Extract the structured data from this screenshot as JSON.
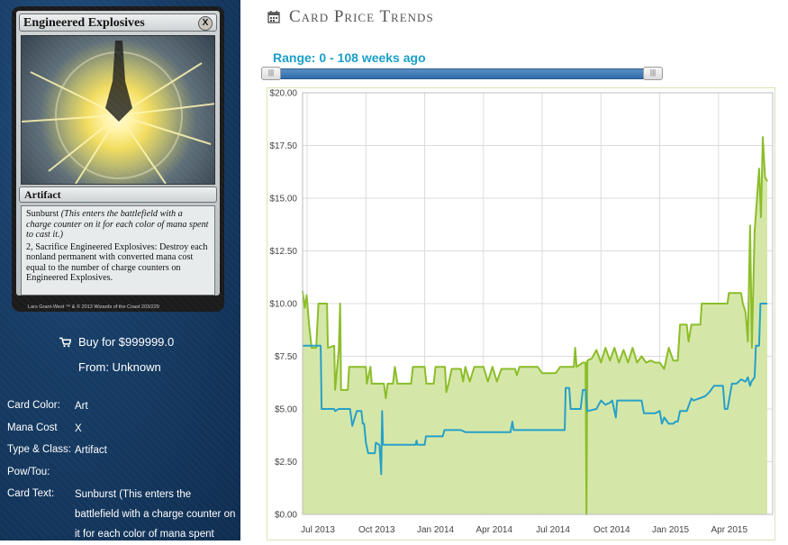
{
  "card": {
    "name": "Engineered Explosives",
    "mana_symbol": "X",
    "type_line": "Artifact",
    "rules_1_name": "Sunburst",
    "rules_1_italic": "(This enters the battlefield with a charge counter on it for each color of mana spent to cast it.)",
    "rules_2": "2, Sacrifice Engineered Explosives: Destroy each nonland permanent with converted mana cost equal to the number of charge counters on Engineered Explosives.",
    "artist": "Lars Grant-West",
    "copyright": "™ & © 2013 Wizards of the Coast 203/229"
  },
  "purchase": {
    "cart_icon": "shopping-cart-icon",
    "buy_label": "Buy for $999999.0",
    "from_label": "From: Unknown"
  },
  "properties": [
    {
      "key": "Card Color:",
      "value": "Art"
    },
    {
      "key": "Mana Cost",
      "value": "X"
    },
    {
      "key": "Type & Class:",
      "value": "Artifact"
    },
    {
      "key": "Pow/Tou:",
      "value": ""
    },
    {
      "key": "Card Text:",
      "value": "Sunburst (This enters the battlefield with a charge counter on it for each color of mana spent"
    }
  ],
  "header": {
    "icon": "calendar-icon",
    "title": "Card Price Trends"
  },
  "range": {
    "label": "Range: 0 - 108 weeks ago",
    "start_fraction": 0,
    "end_fraction": 1
  },
  "colors": {
    "green": "#8cbd2a",
    "green_fill": "#d3e6a3",
    "blue": "#27a0c9",
    "accent": "#1a9fc8",
    "sidebar": "#173d66"
  },
  "chart_data": {
    "type": "area",
    "title": "",
    "xlabel": "",
    "ylabel": "",
    "ylim": [
      0,
      20
    ],
    "y_ticks": [
      "$0.00",
      "$2.50",
      "$5.00",
      "$7.50",
      "$10.00",
      "$12.50",
      "$15.00",
      "$17.50",
      "$20.00"
    ],
    "x_ticks": [
      "Jul 2013",
      "Oct 2013",
      "Jan 2014",
      "Apr 2014",
      "Jul 2014",
      "Oct 2014",
      "Jan 2015",
      "Apr 2015"
    ],
    "x_tick_weeks": [
      1,
      14,
      27,
      40,
      53,
      66,
      79,
      92
    ],
    "grid": true,
    "series": [
      {
        "color": "#8cbd2a",
        "filled": true,
        "points": [
          [
            0,
            10.6
          ],
          [
            0.5,
            9.8
          ],
          [
            0.9,
            10.4
          ],
          [
            1.4,
            9.1
          ],
          [
            2,
            7.9
          ],
          [
            3,
            7.9
          ],
          [
            3.5,
            10
          ],
          [
            5.4,
            10
          ],
          [
            5.6,
            7.9
          ],
          [
            7,
            8
          ],
          [
            7.2,
            5.9
          ],
          [
            8,
            7.8
          ],
          [
            8.3,
            10
          ],
          [
            8.5,
            5.9
          ],
          [
            10,
            5.9
          ],
          [
            10.3,
            7
          ],
          [
            14,
            7
          ],
          [
            14.2,
            6.2
          ],
          [
            15,
            7
          ],
          [
            15.3,
            6.2
          ],
          [
            18,
            6.2
          ],
          [
            18.4,
            5.5
          ],
          [
            18.8,
            6.2
          ],
          [
            20,
            6.2
          ],
          [
            20.4,
            7
          ],
          [
            21,
            6.2
          ],
          [
            24,
            6.2
          ],
          [
            24.4,
            7
          ],
          [
            27,
            7
          ],
          [
            27.4,
            6.2
          ],
          [
            29,
            6.2
          ],
          [
            29.4,
            7
          ],
          [
            31.5,
            7
          ],
          [
            31.8,
            5.8
          ],
          [
            32.3,
            6.2
          ],
          [
            33,
            6.9
          ],
          [
            35,
            6.9
          ],
          [
            35.5,
            6.3
          ],
          [
            36,
            7
          ],
          [
            37,
            6.3
          ],
          [
            38,
            7
          ],
          [
            40,
            7
          ],
          [
            41,
            6.3
          ],
          [
            42,
            7
          ],
          [
            43,
            6.3
          ],
          [
            44,
            6.9
          ],
          [
            47,
            6.9
          ],
          [
            47.4,
            6.6
          ],
          [
            48,
            7
          ],
          [
            52,
            7
          ],
          [
            53,
            6.7
          ],
          [
            56,
            6.7
          ],
          [
            57,
            7
          ],
          [
            60,
            7
          ],
          [
            60.3,
            7.9
          ],
          [
            60.6,
            7
          ],
          [
            62,
            7.2
          ],
          [
            62.6,
            7.2
          ],
          [
            62.8,
            0
          ],
          [
            63,
            7.3
          ],
          [
            64,
            7.4
          ],
          [
            65,
            7.8
          ],
          [
            66,
            7.2
          ],
          [
            67,
            7.9
          ],
          [
            68,
            7.3
          ],
          [
            69,
            7.9
          ],
          [
            70,
            7.2
          ],
          [
            71,
            7.8
          ],
          [
            72,
            7.2
          ],
          [
            73,
            7.9
          ],
          [
            74,
            7.2
          ],
          [
            75,
            7.5
          ],
          [
            76,
            7.2
          ],
          [
            77,
            7.3
          ],
          [
            78,
            7.2
          ],
          [
            79,
            7.2
          ],
          [
            80,
            6.9
          ],
          [
            81,
            7.9
          ],
          [
            82,
            7.3
          ],
          [
            83,
            7.3
          ],
          [
            83.5,
            9
          ],
          [
            85,
            9
          ],
          [
            85.4,
            8.2
          ],
          [
            86,
            9
          ],
          [
            88,
            9
          ],
          [
            88.3,
            10
          ],
          [
            94,
            10
          ],
          [
            94.3,
            10.5
          ],
          [
            97,
            10.5
          ],
          [
            97.4,
            10
          ],
          [
            98,
            9.6
          ],
          [
            98.5,
            8.2
          ],
          [
            99,
            13.7
          ],
          [
            99.4,
            7.9
          ],
          [
            100,
            13.4
          ],
          [
            101,
            16.4
          ],
          [
            101.4,
            14.1
          ],
          [
            101.8,
            17.9
          ],
          [
            102.3,
            16
          ],
          [
            102.8,
            15.8
          ]
        ]
      },
      {
        "color": "#27a0c9",
        "filled": false,
        "points": [
          [
            0,
            8
          ],
          [
            4,
            8
          ],
          [
            4.2,
            5
          ],
          [
            7,
            5
          ],
          [
            7.2,
            4.9
          ],
          [
            8,
            5
          ],
          [
            10.5,
            5
          ],
          [
            11,
            4.2
          ],
          [
            12,
            4.9
          ],
          [
            13,
            4.9
          ],
          [
            13.3,
            4.3
          ],
          [
            13.6,
            4.3
          ],
          [
            14,
            3.4
          ],
          [
            14.5,
            2.9
          ],
          [
            16,
            2.9
          ],
          [
            16.2,
            3.4
          ],
          [
            17,
            3.3
          ],
          [
            17.4,
            1.9
          ],
          [
            17.6,
            4.9
          ],
          [
            17.8,
            3.3
          ],
          [
            25,
            3.3
          ],
          [
            25.2,
            3.5
          ],
          [
            25.4,
            3.3
          ],
          [
            27,
            3.3
          ],
          [
            27.3,
            3.7
          ],
          [
            31,
            3.7
          ],
          [
            31.4,
            4
          ],
          [
            35,
            4
          ],
          [
            36,
            3.9
          ],
          [
            46,
            3.9
          ],
          [
            46.4,
            4.4
          ],
          [
            46.7,
            4
          ],
          [
            53,
            4
          ],
          [
            58,
            4
          ],
          [
            58.2,
            6
          ],
          [
            59,
            6
          ],
          [
            59.3,
            5
          ],
          [
            61.5,
            5
          ],
          [
            62,
            5.9
          ],
          [
            62.6,
            5.9
          ],
          [
            63,
            4.9
          ],
          [
            65,
            5
          ],
          [
            66,
            5.4
          ],
          [
            67,
            5.2
          ],
          [
            68,
            5.3
          ],
          [
            68.5,
            5.4
          ],
          [
            69.3,
            4.6
          ],
          [
            69.6,
            5.4
          ],
          [
            75,
            5.4
          ],
          [
            75.5,
            4.8
          ],
          [
            78,
            4.8
          ],
          [
            79,
            4.9
          ],
          [
            79.5,
            4.3
          ],
          [
            80,
            4.6
          ],
          [
            81,
            4.3
          ],
          [
            82,
            4.3
          ],
          [
            82.5,
            4.4
          ],
          [
            83,
            4.4
          ],
          [
            83.5,
            4.9
          ],
          [
            85,
            4.9
          ],
          [
            86,
            5.5
          ],
          [
            86.5,
            5.4
          ],
          [
            89,
            5.6
          ],
          [
            90,
            5.8
          ],
          [
            91,
            6.1
          ],
          [
            93,
            6.1
          ],
          [
            93.4,
            5
          ],
          [
            94,
            5
          ],
          [
            95,
            6.2
          ],
          [
            96,
            6.2
          ],
          [
            97,
            6.4
          ],
          [
            98,
            6.3
          ],
          [
            98.5,
            6.5
          ],
          [
            99,
            6.1
          ],
          [
            99.3,
            6.3
          ],
          [
            100,
            6.5
          ],
          [
            100.3,
            8
          ],
          [
            101,
            8
          ],
          [
            101.3,
            10
          ],
          [
            102.8,
            10
          ]
        ]
      }
    ]
  }
}
